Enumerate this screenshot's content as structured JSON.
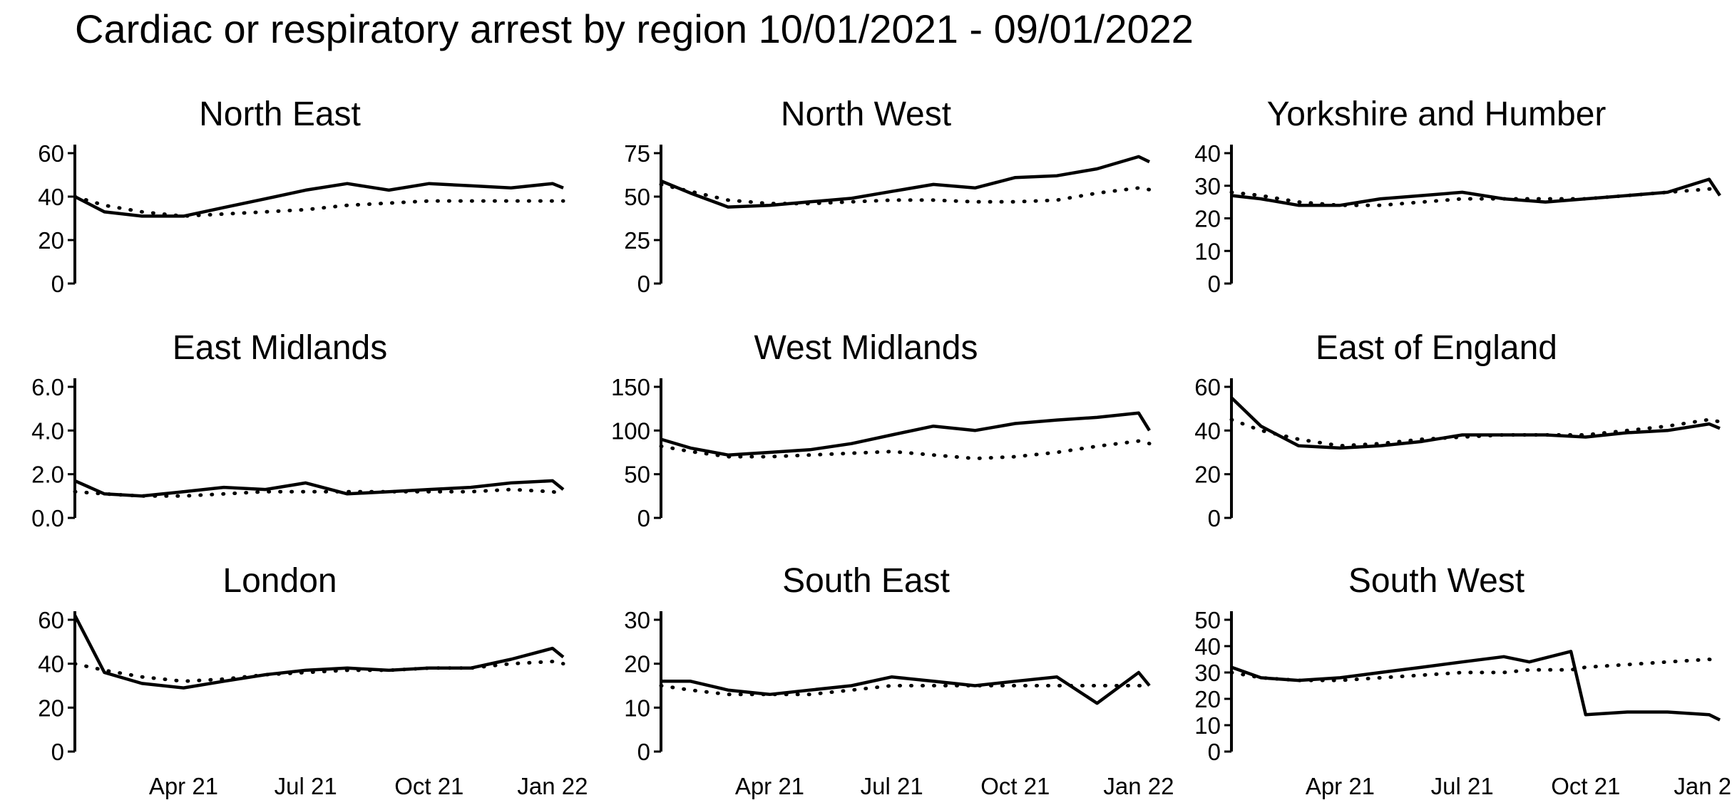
{
  "chart_data": {
    "type": "line",
    "title": "Cardiac or respiratory arrest by region 10/01/2021 - 09/01/2022",
    "x_tick_labels": [
      "Apr 21",
      "Jul 21",
      "Oct 21",
      "Jan 22"
    ],
    "x_ticks": [
      "2021-04-01",
      "2021-07-01",
      "2021-10-01",
      "2022-01-01"
    ],
    "x_range": [
      "2021-01-10",
      "2022-01-09"
    ],
    "grid": false,
    "panels": [
      {
        "name": "North East",
        "ylim": [
          0,
          60
        ],
        "y_ticks": [
          0,
          20,
          40,
          60
        ],
        "y_tick_labels": [
          "0",
          "20",
          "40",
          "60"
        ],
        "x": [
          "2021-01-10",
          "2021-02-01",
          "2021-03-01",
          "2021-04-01",
          "2021-05-01",
          "2021-06-01",
          "2021-07-01",
          "2021-08-01",
          "2021-09-01",
          "2021-10-01",
          "2021-11-01",
          "2021-12-01",
          "2022-01-01",
          "2022-01-09"
        ],
        "series": [
          {
            "values": [
              40,
              33,
              31,
              31,
              35,
              39,
              43,
              46,
              43,
              46,
              45,
              44,
              46,
              44
            ]
          }
        ],
        "expected": [
          40,
          36,
          33,
          31,
          32,
          33,
          34,
          36,
          37,
          38,
          38,
          38,
          38,
          38
        ]
      },
      {
        "name": "North West",
        "ylim": [
          0,
          75
        ],
        "y_ticks": [
          0,
          25,
          50,
          75
        ],
        "y_tick_labels": [
          "0",
          "25",
          "50",
          "75"
        ],
        "x": [
          "2021-01-10",
          "2021-02-01",
          "2021-03-01",
          "2021-04-01",
          "2021-05-01",
          "2021-06-01",
          "2021-07-01",
          "2021-08-01",
          "2021-09-01",
          "2021-10-01",
          "2021-11-01",
          "2021-12-01",
          "2022-01-01",
          "2022-01-09"
        ],
        "series": [
          {
            "values": [
              59,
              52,
              44,
              45,
              47,
              49,
              53,
              57,
              55,
              61,
              62,
              66,
              73,
              70
            ]
          }
        ],
        "expected": [
          57,
          53,
          48,
          46,
          46,
          47,
          48,
          48,
          47,
          47,
          48,
          52,
          55,
          54
        ]
      },
      {
        "name": "Yorkshire and Humber",
        "ylim": [
          0,
          40
        ],
        "y_ticks": [
          0,
          10,
          20,
          30,
          40
        ],
        "y_tick_labels": [
          "0",
          "10",
          "20",
          "30",
          "40"
        ],
        "x": [
          "2021-01-10",
          "2021-02-01",
          "2021-03-01",
          "2021-04-01",
          "2021-05-01",
          "2021-06-01",
          "2021-07-01",
          "2021-08-01",
          "2021-09-01",
          "2021-10-01",
          "2021-11-01",
          "2021-12-01",
          "2022-01-01",
          "2022-01-09"
        ],
        "series": [
          {
            "values": [
              27,
              26,
              24,
              24,
              26,
              27,
              28,
              26,
              25,
              26,
              27,
              28,
              32,
              27
            ]
          }
        ],
        "expected": [
          28,
          27,
          25,
          24,
          24,
          25,
          26,
          26,
          26,
          26,
          27,
          28,
          29,
          29
        ]
      },
      {
        "name": "East Midlands",
        "ylim": [
          0,
          6
        ],
        "y_ticks": [
          0,
          2,
          4,
          6
        ],
        "y_tick_labels": [
          "0.0",
          "2.0",
          "4.0",
          "6.0"
        ],
        "x": [
          "2021-01-10",
          "2021-02-01",
          "2021-03-01",
          "2021-04-01",
          "2021-05-01",
          "2021-06-01",
          "2021-07-01",
          "2021-08-01",
          "2021-09-01",
          "2021-10-01",
          "2021-11-01",
          "2021-12-01",
          "2022-01-01",
          "2022-01-09"
        ],
        "series": [
          {
            "values": [
              1.7,
              1.1,
              1.0,
              1.2,
              1.4,
              1.3,
              1.6,
              1.1,
              1.2,
              1.3,
              1.4,
              1.6,
              1.7,
              1.3
            ]
          }
        ],
        "expected": [
          1.2,
          1.1,
          1.0,
          1.0,
          1.1,
          1.2,
          1.2,
          1.2,
          1.2,
          1.2,
          1.2,
          1.3,
          1.2,
          1.1
        ]
      },
      {
        "name": "West Midlands",
        "ylim": [
          0,
          150
        ],
        "y_ticks": [
          0,
          50,
          100,
          150
        ],
        "y_tick_labels": [
          "0",
          "50",
          "100",
          "150"
        ],
        "x": [
          "2021-01-10",
          "2021-02-01",
          "2021-03-01",
          "2021-04-01",
          "2021-05-01",
          "2021-06-01",
          "2021-07-01",
          "2021-08-01",
          "2021-09-01",
          "2021-10-01",
          "2021-11-01",
          "2021-12-01",
          "2022-01-01",
          "2022-01-09"
        ],
        "series": [
          {
            "values": [
              90,
              80,
              72,
              75,
              78,
              85,
              95,
              105,
              100,
              108,
              112,
              115,
              120,
              100
            ]
          }
        ],
        "expected": [
          82,
          76,
          70,
          70,
          72,
          74,
          76,
          72,
          68,
          70,
          75,
          82,
          88,
          85
        ]
      },
      {
        "name": "East of England",
        "ylim": [
          0,
          60
        ],
        "y_ticks": [
          0,
          20,
          40,
          60
        ],
        "y_tick_labels": [
          "0",
          "20",
          "40",
          "60"
        ],
        "x": [
          "2021-01-10",
          "2021-02-01",
          "2021-03-01",
          "2021-04-01",
          "2021-05-01",
          "2021-06-01",
          "2021-07-01",
          "2021-08-01",
          "2021-09-01",
          "2021-10-01",
          "2021-11-01",
          "2021-12-01",
          "2022-01-01",
          "2022-01-09"
        ],
        "series": [
          {
            "values": [
              55,
              42,
              33,
              32,
              33,
              35,
              38,
              38,
              38,
              37,
              39,
              40,
              43,
              41
            ]
          }
        ],
        "expected": [
          45,
          40,
          36,
          33,
          34,
          36,
          37,
          38,
          38,
          38,
          40,
          42,
          45,
          44
        ]
      },
      {
        "name": "London",
        "ylim": [
          0,
          60
        ],
        "y_ticks": [
          0,
          20,
          40,
          60
        ],
        "y_tick_labels": [
          "0",
          "20",
          "40",
          "60"
        ],
        "x": [
          "2021-01-10",
          "2021-02-01",
          "2021-03-01",
          "2021-04-01",
          "2021-05-01",
          "2021-06-01",
          "2021-07-01",
          "2021-08-01",
          "2021-09-01",
          "2021-10-01",
          "2021-11-01",
          "2021-12-01",
          "2022-01-01",
          "2022-01-09"
        ],
        "series": [
          {
            "values": [
              62,
              36,
              31,
              29,
              32,
              35,
              37,
              38,
              37,
              38,
              38,
              42,
              47,
              43
            ]
          }
        ],
        "expected": [
          40,
          37,
          34,
          32,
          33,
          35,
          36,
          37,
          37,
          38,
          38,
          40,
          41,
          40
        ]
      },
      {
        "name": "South East",
        "ylim": [
          0,
          30
        ],
        "y_ticks": [
          0,
          10,
          20,
          30
        ],
        "y_tick_labels": [
          "0",
          "10",
          "20",
          "30"
        ],
        "x": [
          "2021-01-10",
          "2021-02-01",
          "2021-03-01",
          "2021-04-01",
          "2021-05-01",
          "2021-06-01",
          "2021-07-01",
          "2021-08-01",
          "2021-09-01",
          "2021-10-01",
          "2021-11-01",
          "2021-12-01",
          "2022-01-01",
          "2022-01-09"
        ],
        "series": [
          {
            "values": [
              16,
              16,
              14,
              13,
              14,
              15,
              17,
              16,
              15,
              16,
              17,
              11,
              18,
              15
            ]
          }
        ],
        "expected": [
          15,
          14,
          13,
          13,
          13,
          14,
          15,
          15,
          15,
          15,
          15,
          15,
          15,
          15
        ]
      },
      {
        "name": "South West",
        "ylim": [
          0,
          50
        ],
        "y_ticks": [
          0,
          10,
          20,
          30,
          40,
          50
        ],
        "y_tick_labels": [
          "0",
          "10",
          "20",
          "30",
          "40",
          "50"
        ],
        "x": [
          "2021-01-10",
          "2021-02-01",
          "2021-03-01",
          "2021-04-01",
          "2021-05-01",
          "2021-06-01",
          "2021-07-01",
          "2021-08-01",
          "2021-08-20",
          "2021-09-20",
          "2021-10-01",
          "2021-11-01",
          "2021-12-01",
          "2022-01-01",
          "2022-01-09"
        ],
        "series": [
          {
            "values": [
              32,
              28,
              27,
              28,
              30,
              32,
              34,
              36,
              34,
              38,
              14,
              15,
              15,
              14,
              12
            ]
          }
        ],
        "expected": [
          30,
          28,
          27,
          27,
          28,
          29,
          30,
          30,
          31,
          31,
          32,
          33,
          34,
          35,
          34
        ]
      }
    ]
  }
}
